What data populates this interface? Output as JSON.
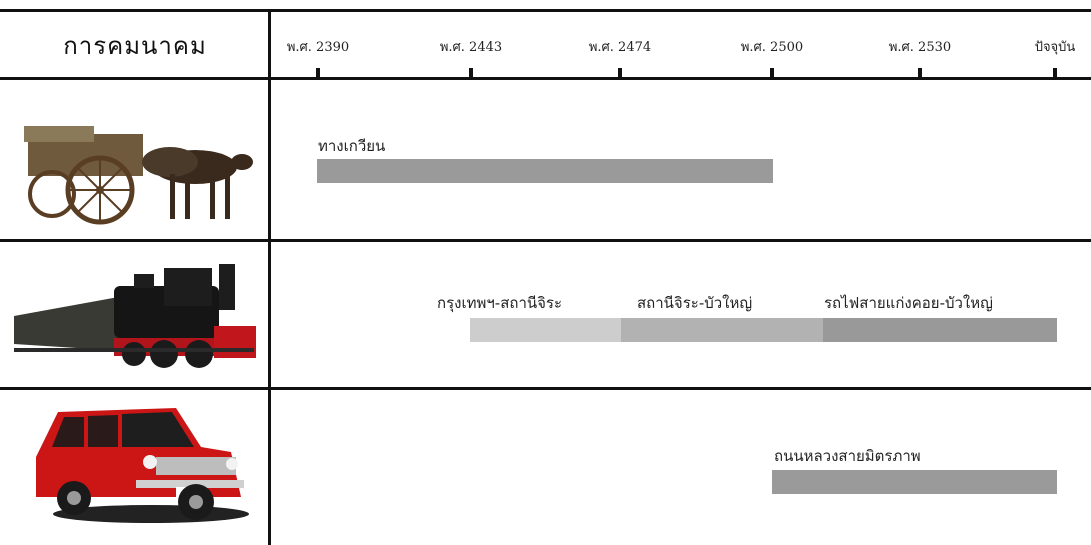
{
  "header": {
    "title": "การคมนาคม"
  },
  "timeline": {
    "ticks": [
      {
        "label": "พ.ศ. 2390",
        "value": 2390
      },
      {
        "label": "พ.ศ. 2443",
        "value": 2443
      },
      {
        "label": "พ.ศ. 2474",
        "value": 2474
      },
      {
        "label": "พ.ศ. 2500",
        "value": 2500
      },
      {
        "label": "พ.ศ. 2530",
        "value": 2530
      },
      {
        "label": "ปัจจุบัน",
        "value": "present"
      }
    ]
  },
  "rows": [
    {
      "icon": "ox-cart-image",
      "bars": [
        {
          "label": "ทางเกวียน",
          "from": "พ.ศ. 2390",
          "to": "พ.ศ. 2500",
          "color": "#9a9a9a"
        }
      ]
    },
    {
      "icon": "steam-train-image",
      "bars": [
        {
          "label": "กรุงเทพฯ-สถานีจิระ",
          "from": "พ.ศ. 2443",
          "to": "พ.ศ. 2474",
          "color": "#cdcdcd"
        },
        {
          "label": "สถานีจิระ-บัวใหญ่",
          "from": "พ.ศ. 2474",
          "to": "พ.ศ. 2500",
          "color": "#b2b2b2"
        },
        {
          "label": "รถไฟสายแก่งคอย-บัวใหญ่",
          "from": "พ.ศ. 2500",
          "to": "ปัจจุบัน",
          "color": "#999999"
        }
      ]
    },
    {
      "icon": "red-car-image",
      "bars": [
        {
          "label": "ถนนหลวงสายมิตรภาพ",
          "from": "พ.ศ. 2500",
          "to": "ปัจจุบัน",
          "color": "#9a9a9a"
        }
      ]
    }
  ]
}
